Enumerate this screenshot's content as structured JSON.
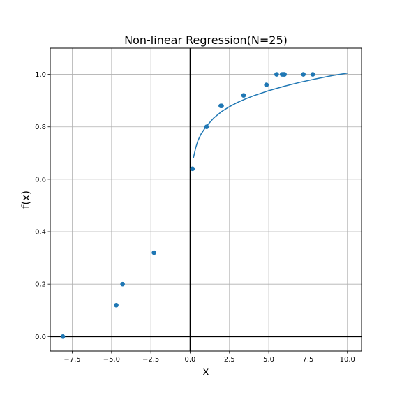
{
  "chart_data": {
    "type": "scatter",
    "title": "Non-linear Regression(N=25)",
    "xlabel": "x",
    "ylabel": "f(x)",
    "xlim": [
      -8.9,
      10.9
    ],
    "ylim": [
      -0.055,
      1.1
    ],
    "xticks": [
      -7.5,
      -5.0,
      -2.5,
      0.0,
      2.5,
      5.0,
      7.5,
      10.0
    ],
    "xtick_labels": [
      "−7.5",
      "−5.0",
      "−2.5",
      "0.0",
      "2.5",
      "5.0",
      "7.5",
      "10.0"
    ],
    "yticks": [
      0.0,
      0.2,
      0.4,
      0.6,
      0.8,
      1.0
    ],
    "ytick_labels": [
      "0.0",
      "0.2",
      "0.4",
      "0.6",
      "0.8",
      "1.0"
    ],
    "grid": true,
    "colors": {
      "series": "#1f77b4",
      "grid": "#b0b0b0",
      "zero_lines": "#000000"
    },
    "series": [
      {
        "type": "scatter",
        "x": [
          -8.1,
          -4.7,
          -4.3,
          -2.3,
          0.15,
          1.05,
          1.95,
          2.0,
          3.4,
          4.85,
          5.5,
          5.85,
          5.95,
          6.0,
          7.2,
          7.8
        ],
        "y": [
          0.0,
          0.12,
          0.2,
          0.32,
          0.64,
          0.8,
          0.88,
          0.88,
          0.92,
          0.96,
          1.0,
          1.0,
          1.0,
          1.0,
          1.0,
          1.0
        ]
      },
      {
        "type": "line",
        "x": [
          0.2,
          0.35,
          0.5,
          0.7,
          1.0,
          1.5,
          2.0,
          2.5,
          3.0,
          3.5,
          4.0,
          5.0,
          6.0,
          7.0,
          8.0,
          9.0,
          10.0
        ],
        "y": [
          0.68,
          0.72,
          0.748,
          0.773,
          0.8,
          0.834,
          0.858,
          0.877,
          0.893,
          0.906,
          0.918,
          0.938,
          0.955,
          0.97,
          0.983,
          0.995,
          1.005
        ]
      }
    ]
  }
}
